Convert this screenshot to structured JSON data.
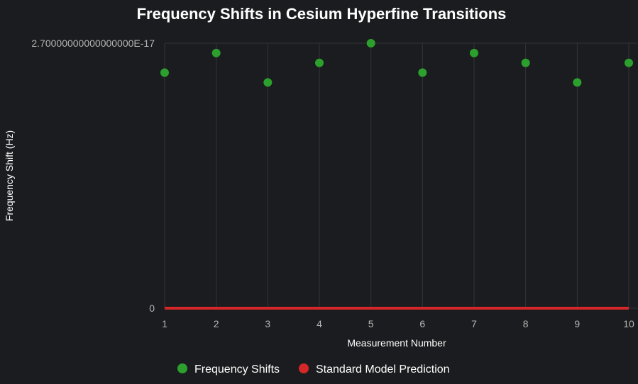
{
  "chart_data": {
    "type": "scatter",
    "title": "Frequency Shifts in Cesium Hyperfine Transitions",
    "xlabel": "Measurement Number",
    "ylabel": "Frequency Shift (Hz)",
    "x_ticks": [
      "1",
      "2",
      "3",
      "4",
      "5",
      "6",
      "7",
      "8",
      "9",
      "10"
    ],
    "y_tick_labels": [
      "0",
      "2.70000000000000000E-17"
    ],
    "xlim": [
      1,
      10
    ],
    "ylim": [
      0,
      2.7e-17
    ],
    "grid": true,
    "legend_position": "bottom",
    "series": [
      {
        "name": "Frequency Shifts",
        "type": "scatter",
        "color": "#2ca02c",
        "x": [
          1,
          2,
          3,
          4,
          5,
          6,
          7,
          8,
          9,
          10
        ],
        "values": [
          2.4e-17,
          2.6e-17,
          2.3e-17,
          2.5e-17,
          2.7e-17,
          2.4e-17,
          2.6e-17,
          2.5e-17,
          2.3e-17,
          2.5e-17
        ]
      },
      {
        "name": "Standard Model Prediction",
        "type": "line",
        "color": "#d62728",
        "x": [
          1,
          2,
          3,
          4,
          5,
          6,
          7,
          8,
          9,
          10
        ],
        "values": [
          0,
          0,
          0,
          0,
          0,
          0,
          0,
          0,
          0,
          0
        ]
      }
    ]
  }
}
